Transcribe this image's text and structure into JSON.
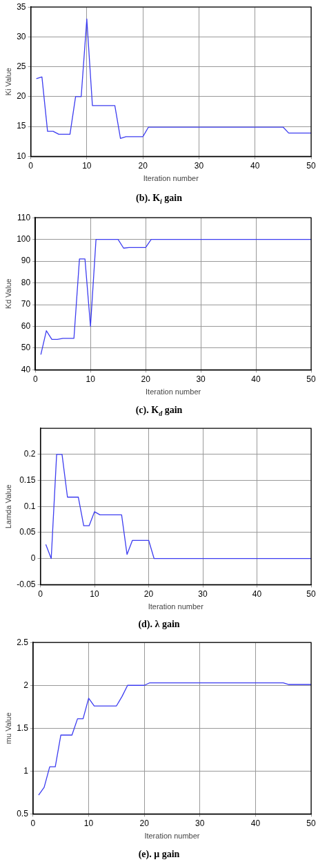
{
  "chart_data": [
    {
      "type": "line",
      "title": "(b). K$_{i}$ gain",
      "xlabel": "Iteration number",
      "ylabel": "Ki Value",
      "xlim": [
        0,
        50
      ],
      "xticks": [
        0,
        10,
        20,
        30,
        40,
        50
      ],
      "ylim": [
        10,
        35
      ],
      "yticks": [
        10,
        15,
        20,
        25,
        30,
        35
      ],
      "grid": true,
      "legend": false,
      "marker": "none",
      "line_style": "solid",
      "series": [
        {
          "color": "#3c3cf0",
          "x": [
            1,
            2,
            3,
            4,
            5,
            7,
            8,
            9,
            10,
            11,
            15,
            16,
            17,
            20,
            21,
            45,
            46,
            50
          ],
          "values": [
            23,
            23.3,
            14.2,
            14.2,
            13.7,
            13.7,
            20,
            20,
            33,
            18.5,
            18.5,
            13,
            13.3,
            13.3,
            14.9,
            14.9,
            13.9,
            13.9
          ]
        }
      ]
    },
    {
      "type": "line",
      "title": "(c). K$_{d}$ gain",
      "xlabel": "Iteration number",
      "ylabel": "Kd Value",
      "xlim": [
        0,
        50
      ],
      "xticks": [
        0,
        10,
        20,
        30,
        40,
        50
      ],
      "ylim": [
        40,
        110
      ],
      "yticks": [
        40,
        50,
        60,
        70,
        80,
        90,
        100,
        110
      ],
      "grid": true,
      "legend": false,
      "marker": "none",
      "line_style": "solid",
      "series": [
        {
          "color": "#3c3cf0",
          "x": [
            1,
            2,
            3,
            4,
            5,
            7,
            8,
            9,
            10,
            11,
            15,
            16,
            17,
            20,
            21,
            50
          ],
          "values": [
            47,
            58,
            54,
            54,
            54.5,
            54.5,
            91,
            91,
            60,
            100,
            100,
            96,
            96.3,
            96.3,
            100,
            100
          ]
        }
      ]
    },
    {
      "type": "line",
      "title": "(d). λ gain",
      "xlabel": "Iteration number",
      "ylabel": "Lamda Value",
      "xlim": [
        0,
        50
      ],
      "xticks": [
        0,
        10,
        20,
        30,
        40,
        50
      ],
      "ylim": [
        -0.05,
        0.25
      ],
      "yticks": [
        -0.05,
        0,
        0.05,
        0.1,
        0.15,
        0.2
      ],
      "grid": true,
      "legend": false,
      "marker": "none",
      "line_style": "solid",
      "series": [
        {
          "color": "#3c3cf0",
          "x": [
            1,
            2,
            3,
            4,
            5,
            7,
            8,
            9,
            10,
            11,
            15,
            16,
            17,
            20,
            21,
            50
          ],
          "values": [
            0.027,
            0,
            0.2,
            0.2,
            0.118,
            0.118,
            0.063,
            0.063,
            0.09,
            0.084,
            0.084,
            0.008,
            0.035,
            0.035,
            0,
            0
          ]
        }
      ]
    },
    {
      "type": "line",
      "title": "(e). μ gain",
      "xlabel": "Iteration number",
      "ylabel": "mu Value",
      "xlim": [
        0,
        50
      ],
      "xticks": [
        0,
        10,
        20,
        30,
        40,
        50
      ],
      "ylim": [
        0.5,
        2.5
      ],
      "yticks": [
        0.5,
        1,
        1.5,
        2,
        2.5
      ],
      "grid": true,
      "legend": false,
      "marker": "none",
      "line_style": "solid",
      "series": [
        {
          "color": "#3c3cf0",
          "x": [
            1,
            2,
            3,
            4,
            5,
            7,
            8,
            9,
            10,
            11,
            15,
            16,
            17,
            20,
            21,
            45,
            46,
            50
          ],
          "values": [
            0.72,
            0.81,
            1.05,
            1.05,
            1.42,
            1.42,
            1.61,
            1.61,
            1.85,
            1.76,
            1.76,
            1.87,
            2.0,
            2.0,
            2.03,
            2.03,
            2.01,
            2.01
          ]
        }
      ]
    }
  ]
}
